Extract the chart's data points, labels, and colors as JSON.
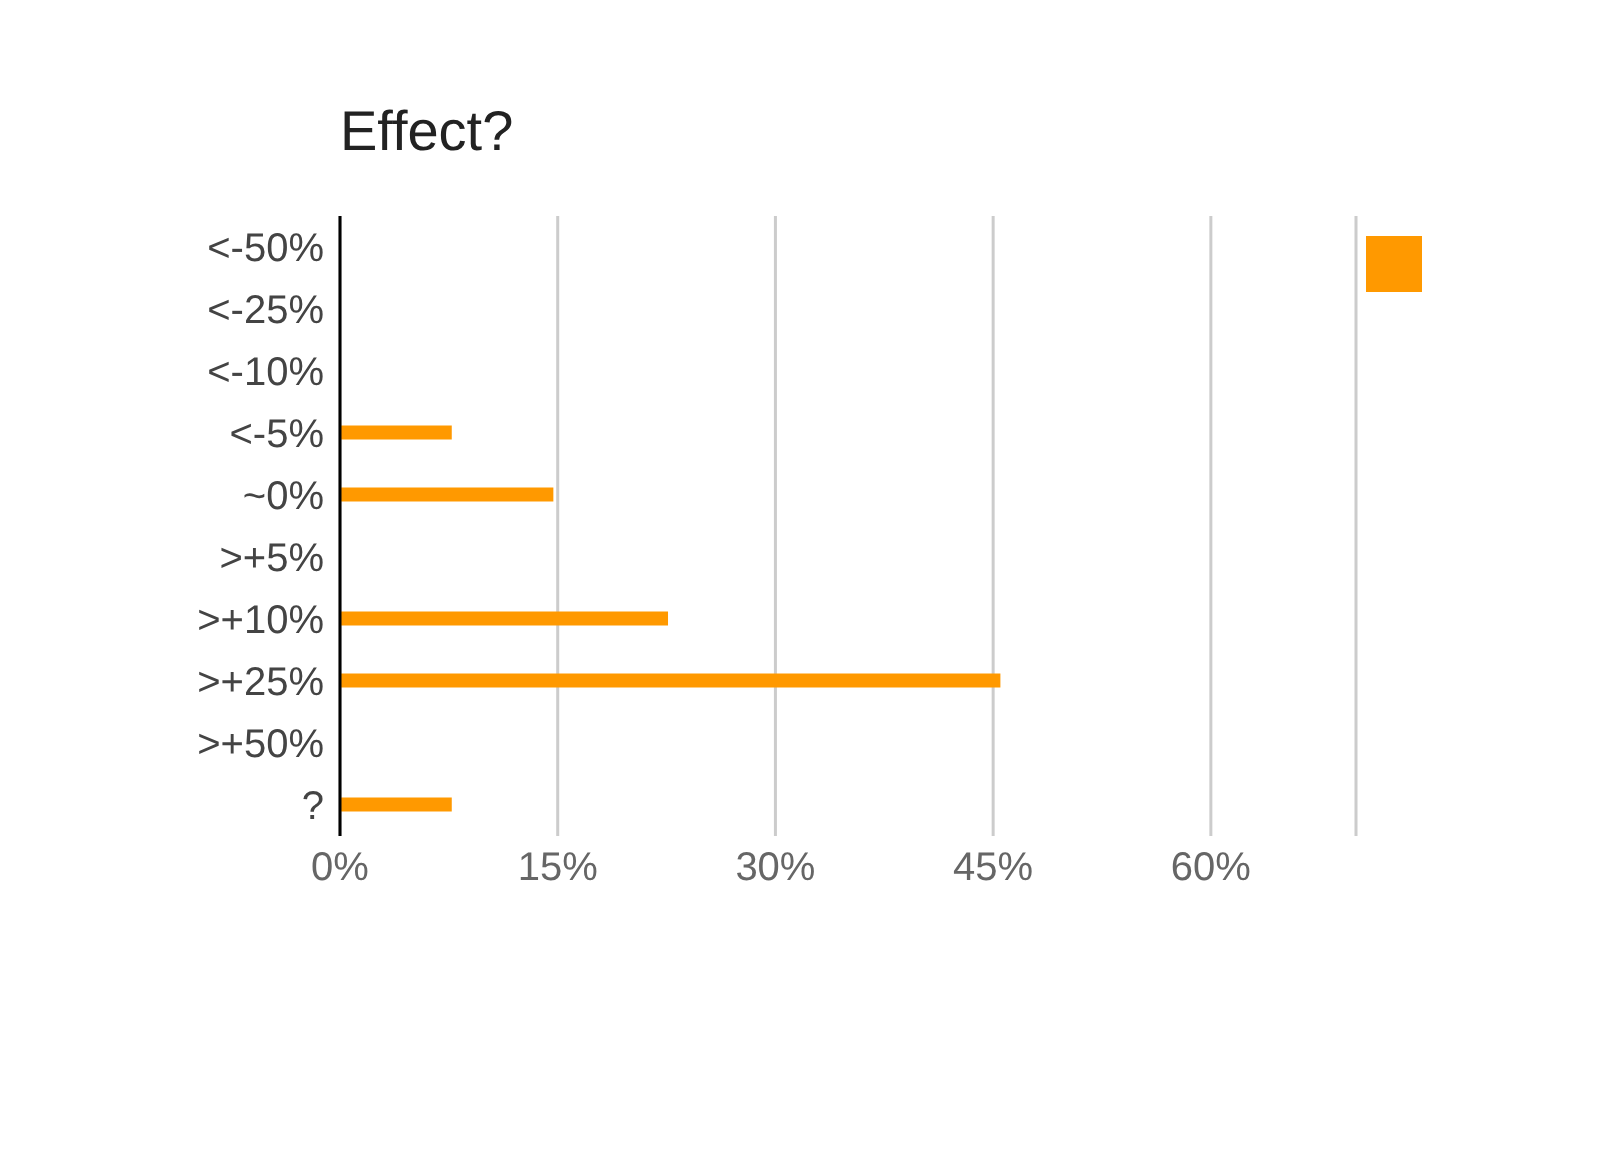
{
  "chart_data": {
    "type": "bar",
    "orientation": "horizontal",
    "title": "Effect?",
    "categories": [
      "<-50%",
      "<-25%",
      "<-10%",
      "<-5%",
      "~0%",
      ">+5%",
      ">+10%",
      ">+25%",
      ">+50%",
      "?"
    ],
    "values": [
      null,
      null,
      null,
      7.7,
      14.7,
      null,
      22.6,
      45.5,
      null,
      7.7
    ],
    "color": "#ff9900",
    "xlim": [
      0,
      70
    ],
    "xticks": [
      {
        "value": 0,
        "label": "0%"
      },
      {
        "value": 15,
        "label": "15%"
      },
      {
        "value": 30,
        "label": "30%"
      },
      {
        "value": 45,
        "label": "45%"
      },
      {
        "value": 60,
        "label": "60%"
      }
    ],
    "grid": "x"
  }
}
